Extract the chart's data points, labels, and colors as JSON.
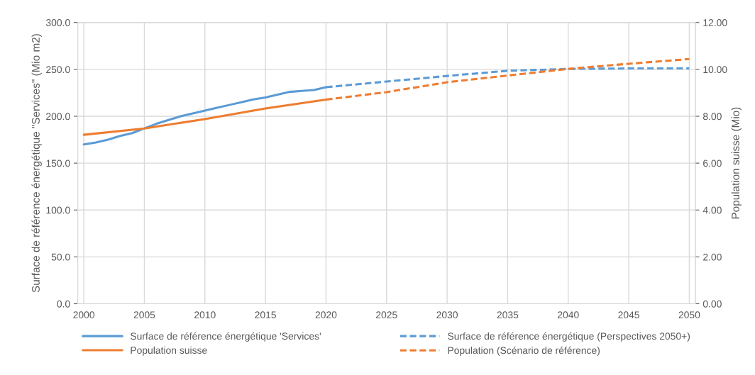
{
  "chart_data": {
    "type": "line",
    "ylabel": "Surface de référence énergétique \"Services\" (Mio m2)",
    "y2label": "Population suisse (Mio)",
    "xlim": [
      1999.5,
      2050.5
    ],
    "xticks": [
      2000,
      2005,
      2010,
      2015,
      2020,
      2025,
      2030,
      2035,
      2040,
      2045,
      2050
    ],
    "ylim": [
      0,
      300
    ],
    "yticks": [
      {
        "value": 0,
        "label": "0.0"
      },
      {
        "value": 50,
        "label": "50.0"
      },
      {
        "value": 100,
        "label": "100.0"
      },
      {
        "value": 150,
        "label": "150.0"
      },
      {
        "value": 200,
        "label": "200.0"
      },
      {
        "value": 250,
        "label": "250.0"
      },
      {
        "value": 300,
        "label": "300.0"
      }
    ],
    "y2lim": [
      0,
      12
    ],
    "y2ticks": [
      {
        "value": 0,
        "label": "0.00"
      },
      {
        "value": 2,
        "label": "2.00"
      },
      {
        "value": 4,
        "label": "4.00"
      },
      {
        "value": 6,
        "label": "6.00"
      },
      {
        "value": 8,
        "label": "8.00"
      },
      {
        "value": 10,
        "label": "10.00"
      },
      {
        "value": 12,
        "label": "12.00"
      }
    ],
    "grid": true,
    "legend": "bottom",
    "series": [
      {
        "name": "Surface de référence énergétique 'Services'",
        "color": "#5b9bd5",
        "line_style": "solid",
        "x": [
          2000,
          2001,
          2002,
          2003,
          2004,
          2005,
          2006,
          2007,
          2008,
          2009,
          2010,
          2011,
          2012,
          2013,
          2014,
          2015,
          2016,
          2017,
          2018,
          2019,
          2020
        ],
        "values": [
          170,
          172,
          175,
          179,
          182,
          187,
          192,
          196,
          200,
          203,
          206,
          209,
          212,
          215,
          218,
          220,
          223,
          226,
          227,
          228,
          231
        ]
      },
      {
        "name": "Surface de référence énergétique (Perspectives 2050+)",
        "color": "#5b9bd5",
        "line_style": "dashed",
        "x": [
          2020,
          2025,
          2030,
          2035,
          2040,
          2045,
          2050
        ],
        "values": [
          231,
          237,
          243,
          248.5,
          250.5,
          251,
          251
        ]
      },
      {
        "name": "Population suisse",
        "color": "#ed7d31",
        "line_style": "solid",
        "axis": "y2",
        "x": [
          2000,
          2005,
          2010,
          2015,
          2020
        ],
        "values": [
          7.21,
          7.48,
          7.88,
          8.33,
          8.71
        ]
      },
      {
        "name": "Population (Scénario de référence)",
        "color": "#ed7d31",
        "line_style": "dashed",
        "axis": "y2",
        "x": [
          2020,
          2025,
          2030,
          2035,
          2040,
          2045,
          2050
        ],
        "values": [
          8.71,
          9.03,
          9.45,
          9.74,
          10.02,
          10.24,
          10.44
        ]
      }
    ]
  }
}
